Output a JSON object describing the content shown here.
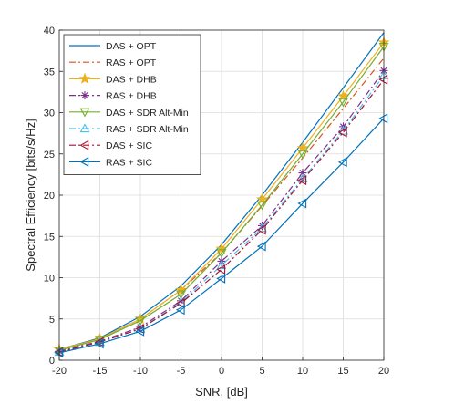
{
  "chart_data": {
    "type": "line",
    "title": "",
    "xlabel": "SNR, [dB]",
    "ylabel": "Spectral Efficiency [bits/s/Hz]",
    "xlim": [
      -20,
      20
    ],
    "ylim": [
      0,
      40
    ],
    "xticks": [
      -20,
      -15,
      -10,
      -5,
      0,
      5,
      10,
      15,
      20
    ],
    "yticks": [
      0,
      5,
      10,
      15,
      20,
      25,
      30,
      35,
      40
    ],
    "grid": true,
    "legend_position": "top-left",
    "x": [
      -20,
      -15,
      -10,
      -5,
      0,
      5,
      10,
      15,
      20
    ],
    "series": [
      {
        "name": "DAS + OPT",
        "color": "#0072BD",
        "dash": "solid",
        "marker": "none",
        "values": [
          1.3,
          2.7,
          5.3,
          9.0,
          14.0,
          20.0,
          26.4,
          33.0,
          39.7
        ]
      },
      {
        "name": "RAS + OPT",
        "color": "#D95319",
        "dash": "dashdot",
        "marker": "none",
        "values": [
          1.3,
          2.6,
          5.0,
          8.5,
          13.0,
          18.7,
          24.5,
          30.5,
          36.6
        ]
      },
      {
        "name": "DAS + DHB",
        "color": "#EDB120",
        "dash": "solid",
        "marker": "star",
        "values": [
          1.3,
          2.6,
          5.0,
          8.5,
          13.5,
          19.5,
          25.7,
          32.0,
          38.5
        ]
      },
      {
        "name": "RAS + DHB",
        "color": "#7E2F8E",
        "dash": "dashdot",
        "marker": "asterisk",
        "values": [
          1.1,
          2.3,
          4.0,
          7.2,
          12.0,
          16.3,
          22.7,
          28.3,
          35.1
        ]
      },
      {
        "name": "DAS + SDR Alt-Min",
        "color": "#77AC30",
        "dash": "solid",
        "marker": "triangle-down",
        "values": [
          1.2,
          2.5,
          4.8,
          8.0,
          13.0,
          18.8,
          25.0,
          31.3,
          38.0
        ]
      },
      {
        "name": "RAS + SDR Alt-Min",
        "color": "#4DBEEE",
        "dash": "dashdot",
        "marker": "triangle-up",
        "values": [
          1.0,
          2.2,
          3.8,
          7.0,
          11.5,
          16.0,
          22.0,
          27.8,
          34.5
        ]
      },
      {
        "name": "DAS + SIC",
        "color": "#A2142F",
        "dash": "dashdot",
        "marker": "triangle-left",
        "values": [
          1.0,
          2.2,
          3.8,
          6.9,
          11.0,
          15.8,
          21.8,
          27.6,
          34.0
        ]
      },
      {
        "name": "RAS + SIC",
        "color": "#0072BD",
        "dash": "solid",
        "marker": "triangle-left",
        "values": [
          0.9,
          2.0,
          3.5,
          6.1,
          9.9,
          13.8,
          19.0,
          24.0,
          29.3
        ]
      }
    ]
  }
}
